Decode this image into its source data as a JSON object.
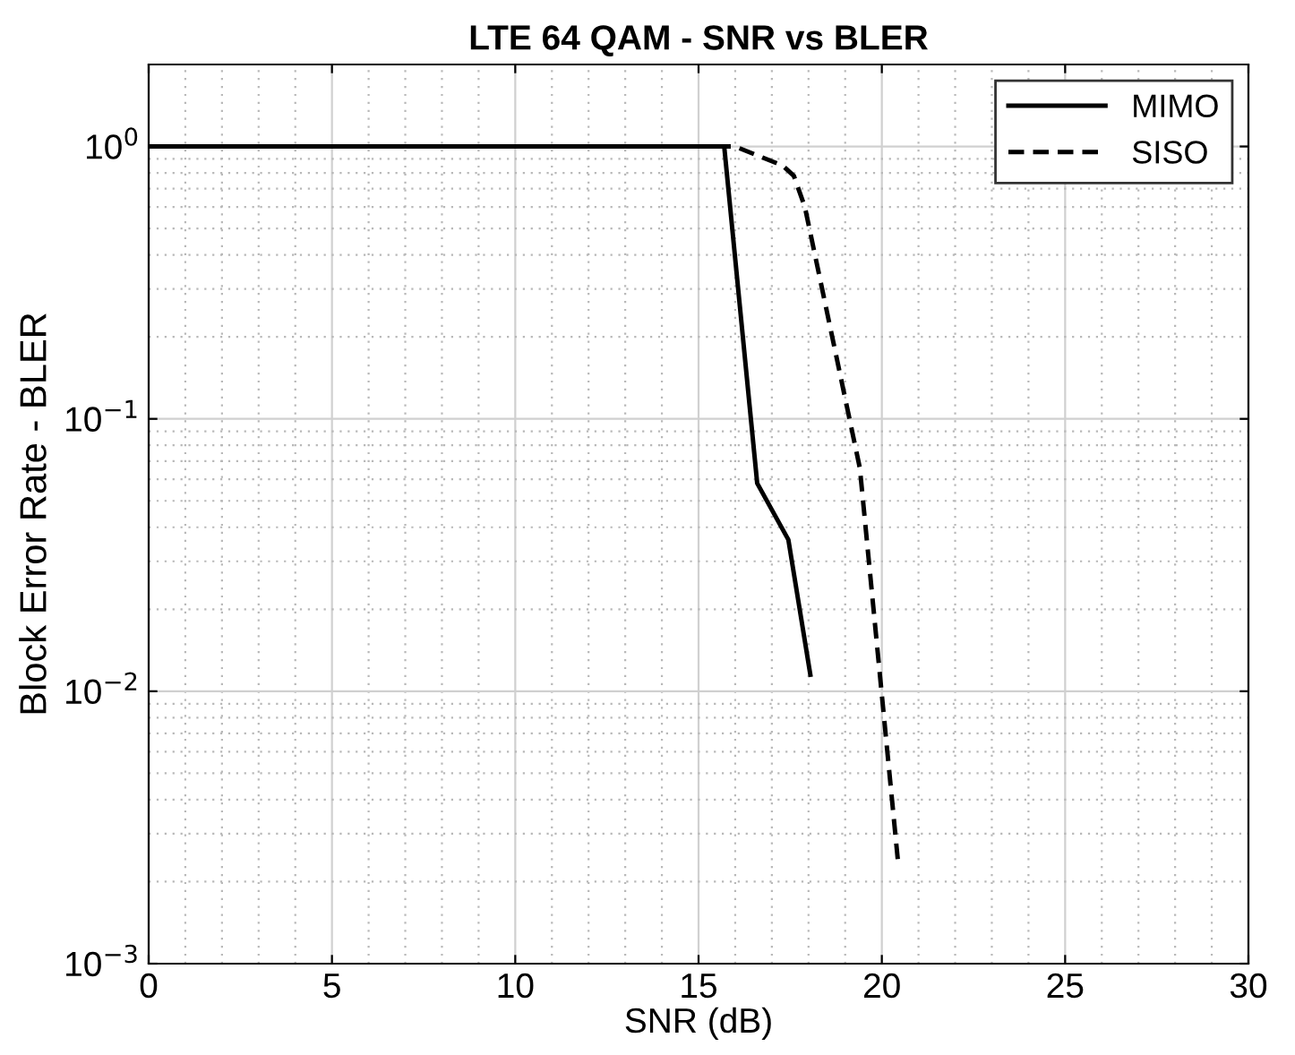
{
  "chart_data": {
    "type": "line",
    "title": "LTE 64 QAM - SNR vs BLER",
    "xlabel": "SNR (dB)",
    "ylabel": "Block Error Rate - BLER",
    "log": "y",
    "grid": true,
    "legend": "top right",
    "xlim": [
      0,
      30
    ],
    "xticks": [
      0,
      5,
      10,
      15,
      20,
      25,
      30
    ],
    "ylim": [
      0.001,
      2
    ],
    "yticks": [
      {
        "value": 0.001,
        "label": "10$^{−3}$"
      },
      {
        "value": 0.01,
        "label": "10$^{−2}$"
      },
      {
        "value": 0.1,
        "label": "10$^{−1}$"
      },
      {
        "value": 1,
        "label": "10$^{0}$"
      }
    ],
    "series": [
      {
        "name": "MIMO",
        "color": "#000000",
        "line_style": "solid",
        "x": [
          0,
          15.7,
          16.6,
          17.45,
          18.05
        ],
        "values": [
          1,
          1,
          0.058,
          0.036,
          0.0115
        ]
      },
      {
        "name": "SISO",
        "color": "#000000",
        "line_style": "dashed",
        "x": [
          0,
          16.0,
          17.3,
          17.6,
          17.9,
          19.4,
          20.45
        ],
        "values": [
          1,
          1,
          0.85,
          0.78,
          0.6,
          0.066,
          0.0023
        ]
      }
    ]
  }
}
